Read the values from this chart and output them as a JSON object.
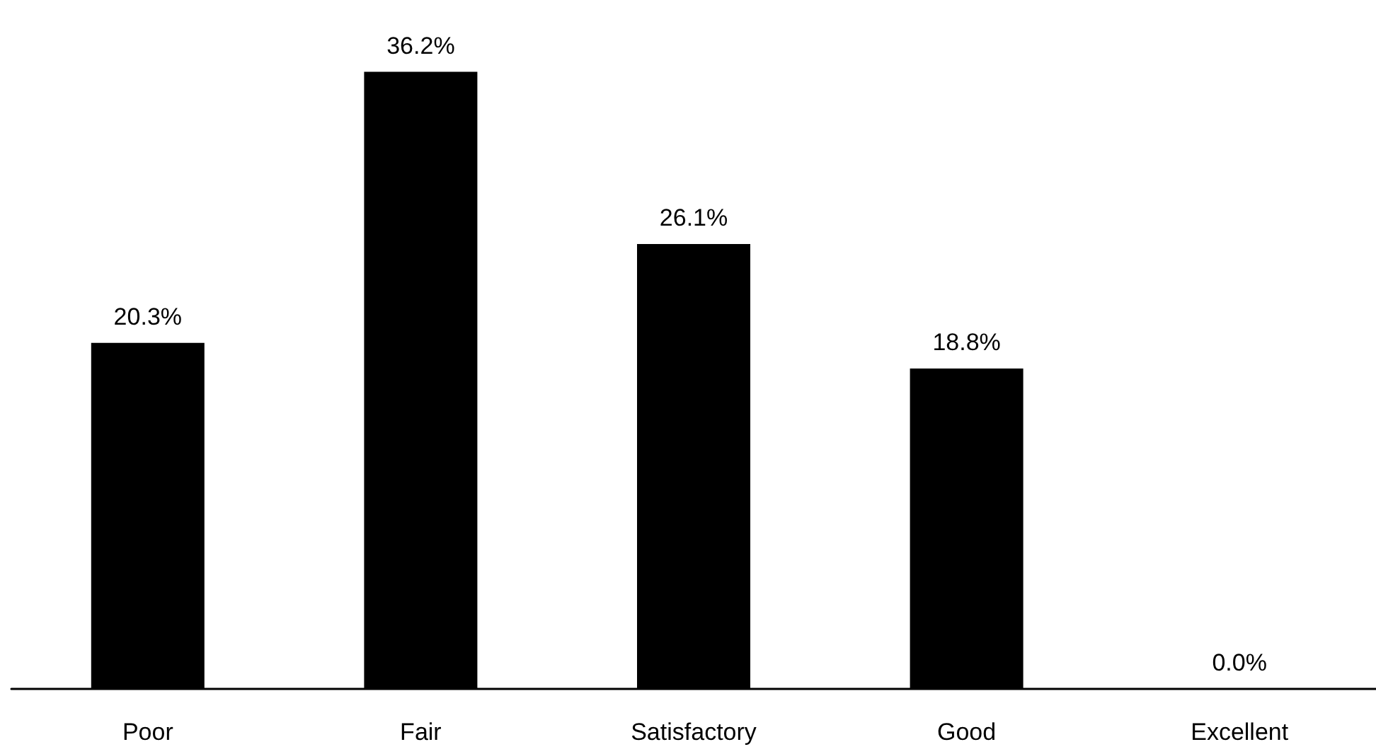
{
  "chart_data": {
    "type": "bar",
    "categories": [
      "Poor",
      "Fair",
      "Satisfactory",
      "Good",
      "Excellent"
    ],
    "values": [
      20.3,
      36.2,
      26.1,
      18.8,
      0.0
    ],
    "color": "#000000",
    "value_labels": [
      "20.3%",
      "36.2%",
      "26.1%",
      "18.8%",
      "0.0%"
    ]
  }
}
